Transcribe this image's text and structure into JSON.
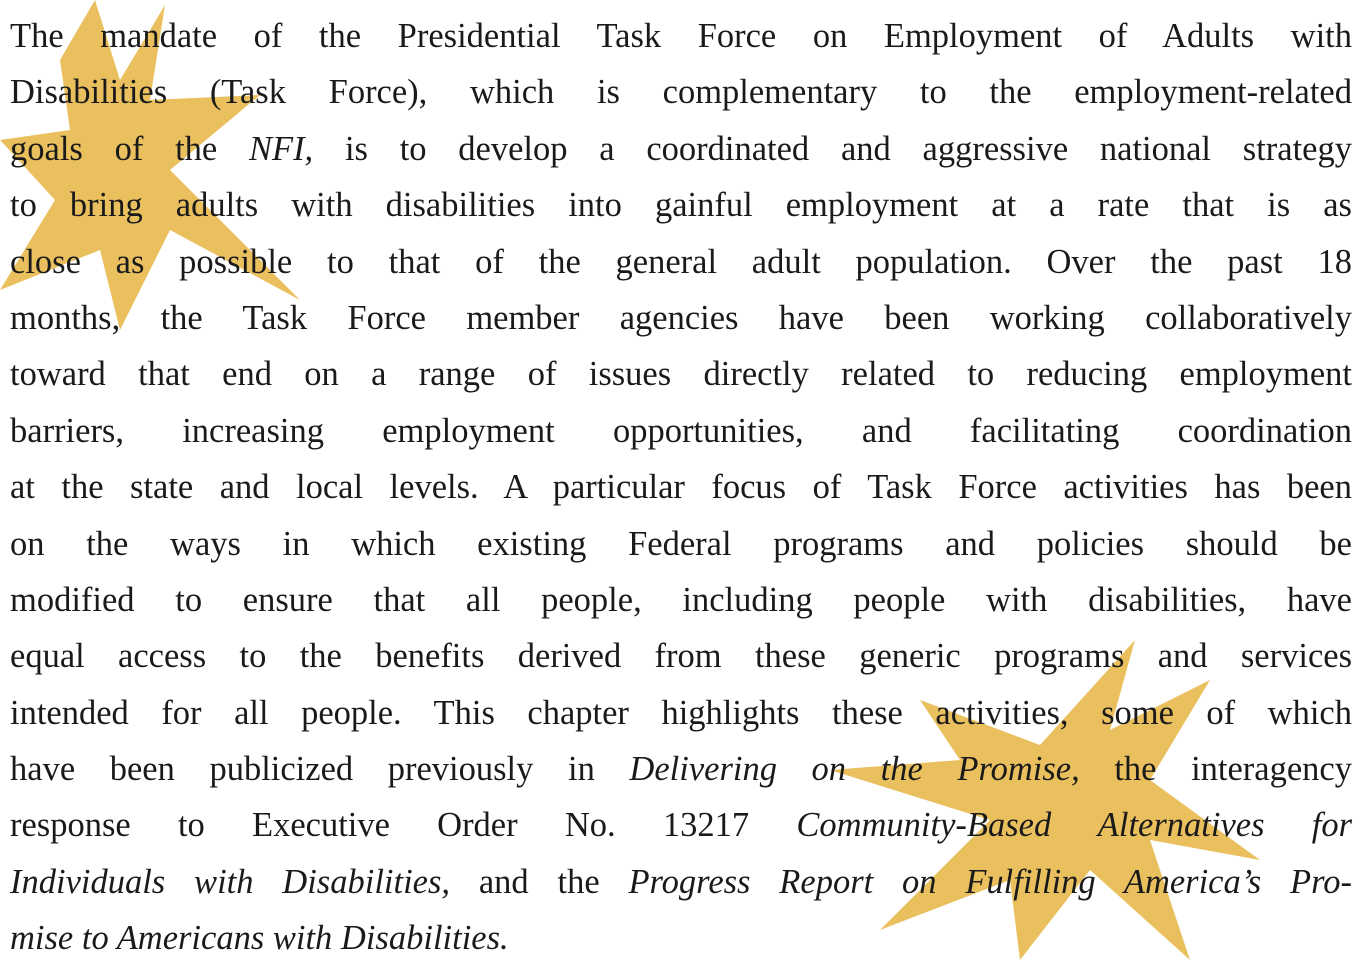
{
  "paragraph": {
    "lines": [
      {
        "runs": [
          {
            "text": "The mandate of the Presidential Task Force on Employment of Adults with"
          }
        ]
      },
      {
        "runs": [
          {
            "text": "Disabilities (Task Force), which is complementary to the employment-related"
          }
        ]
      },
      {
        "runs": [
          {
            "text": "goals of the "
          },
          {
            "text": "NFI,",
            "italic": true
          },
          {
            "text": " is to develop a coordinated and aggressive national strategy"
          }
        ]
      },
      {
        "runs": [
          {
            "text": "to bring adults with disabilities into gainful employment at a rate that is as"
          }
        ]
      },
      {
        "runs": [
          {
            "text": "close as possible to that of the general adult population.  Over the past 18"
          }
        ]
      },
      {
        "runs": [
          {
            "text": "months, the Task Force member agencies have been working collaboratively"
          }
        ]
      },
      {
        "runs": [
          {
            "text": "toward that end on a range of issues directly related to reducing employment"
          }
        ]
      },
      {
        "runs": [
          {
            "text": "barriers, increasing employment opportunities, and facilitating coordination"
          }
        ]
      },
      {
        "runs": [
          {
            "text": "at the state and local levels.  A particular focus of Task Force activities has been"
          }
        ]
      },
      {
        "runs": [
          {
            "text": "on the ways in which existing Federal programs and policies should be"
          }
        ]
      },
      {
        "runs": [
          {
            "text": "modified to ensure that all people, including people with disabilities, have"
          }
        ]
      },
      {
        "runs": [
          {
            "text": "equal access to the benefits derived from these generic programs and services"
          }
        ]
      },
      {
        "runs": [
          {
            "text": "intended for all people.  This chapter highlights these activities, some of which"
          }
        ]
      },
      {
        "runs": [
          {
            "text": "have been publicized previously in "
          },
          {
            "text": "Delivering on the Promise,",
            "italic": true
          },
          {
            "text": " the interagency"
          }
        ]
      },
      {
        "runs": [
          {
            "text": "response to Executive Order No. 13217 "
          },
          {
            "text": "Community-Based Alternatives for",
            "italic": true
          }
        ]
      },
      {
        "runs": [
          {
            "text": "Individuals with Disabilities,",
            "italic": true
          },
          {
            "text": " and the "
          },
          {
            "text": "Progress Report on Fulfilling America’s Pro-",
            "italic": true
          }
        ]
      },
      {
        "runs": [
          {
            "text": "mise to Americans with Disabilities.",
            "italic": true
          }
        ]
      }
    ]
  }
}
